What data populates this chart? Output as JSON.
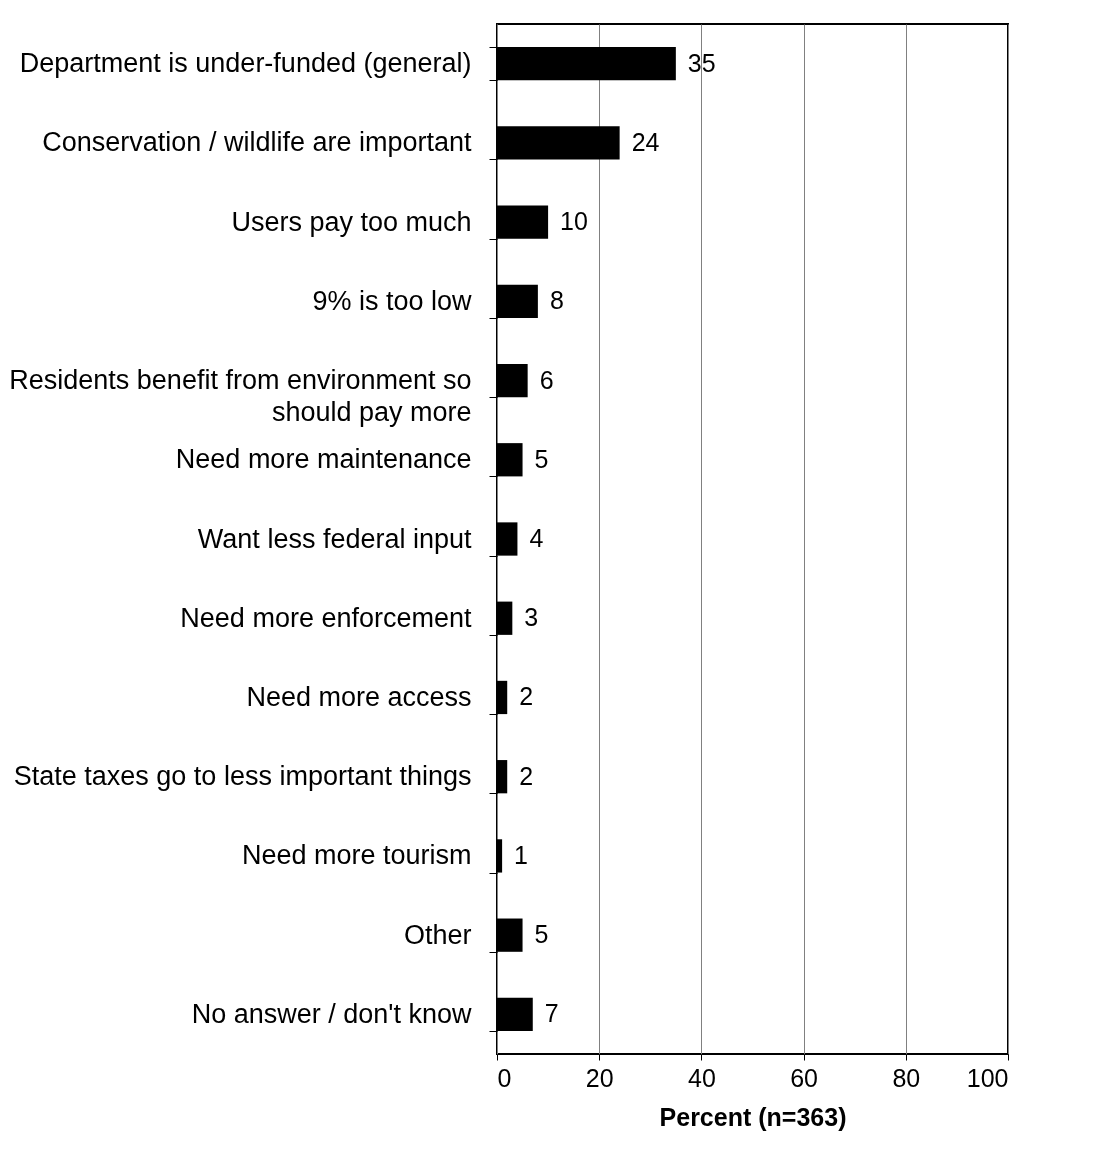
{
  "chart_data": {
    "type": "bar",
    "orientation": "horizontal",
    "xlabel": "Percent (n=363)",
    "categories": [
      "Department is under-funded (general)",
      "Conservation / wildlife are important",
      "Users pay too much",
      "9% is too low",
      "Residents benefit from environment so should pay more",
      "Need more maintenance",
      "Want less federal input",
      "Need more enforcement",
      "Need more access",
      "State taxes go to less important things",
      "Need more tourism",
      "Other",
      "No answer / don't know"
    ],
    "values": [
      35,
      24,
      10,
      8,
      6,
      5,
      4,
      3,
      2,
      2,
      1,
      5,
      7
    ],
    "color": "#000000",
    "xlim": [
      0,
      100
    ],
    "xticks": [
      0,
      20,
      40,
      60,
      80,
      100
    ],
    "grid": "x",
    "data_labels": true
  }
}
